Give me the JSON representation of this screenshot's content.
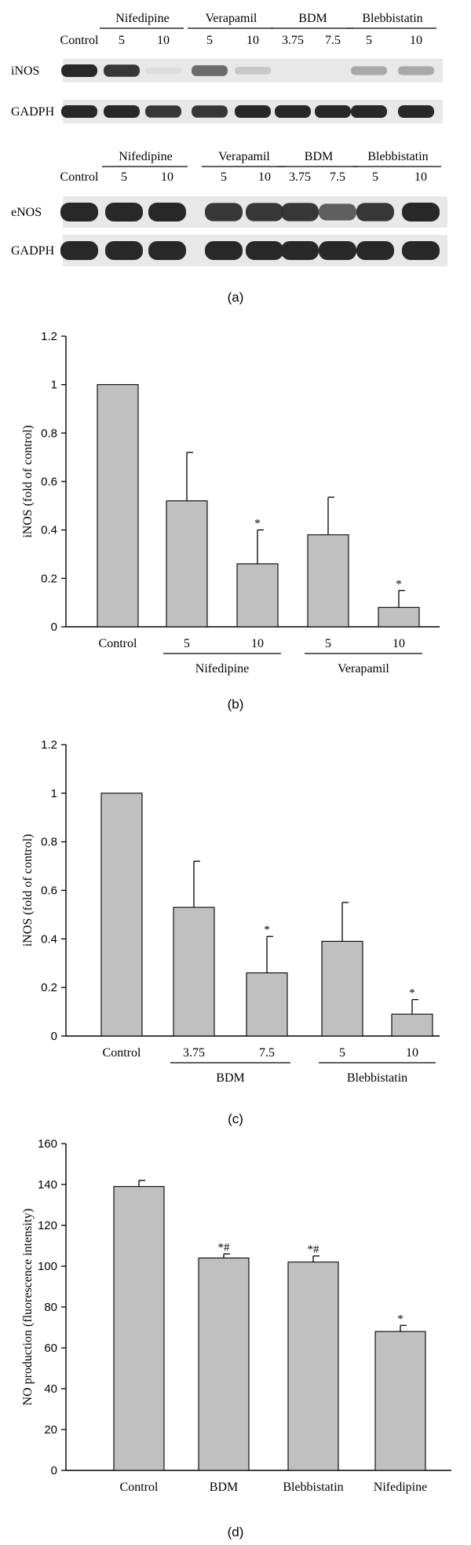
{
  "blots": {
    "top": {
      "control_label": "Control",
      "groups": [
        {
          "name": "Nifedipine",
          "doses": [
            "5",
            "10"
          ]
        },
        {
          "name": "Verapamil",
          "doses": [
            "5",
            "10"
          ]
        },
        {
          "name": "BDM",
          "doses": [
            "3.75",
            "7.5"
          ]
        },
        {
          "name": "Blebbistatin",
          "doses": [
            "5",
            "10"
          ]
        }
      ],
      "rows": [
        {
          "label": "iNOS",
          "intensities": [
            1,
            0.95,
            0.05,
            0.75,
            0.25,
            0,
            0,
            0.45,
            0.45
          ]
        },
        {
          "label": "GADPH",
          "intensities": [
            1,
            1,
            0.95,
            0.95,
            1,
            1,
            1,
            1,
            1
          ]
        }
      ]
    },
    "bottom": {
      "control_label": "Control",
      "groups": [
        {
          "name": "Nifedipine",
          "doses": [
            "5",
            "10"
          ]
        },
        {
          "name": "Verapamil",
          "doses": [
            "5",
            "10"
          ]
        },
        {
          "name": "BDM",
          "doses": [
            "3.75",
            "7.5"
          ]
        },
        {
          "name": "Blebbistatin",
          "doses": [
            "5",
            "10"
          ]
        }
      ],
      "rows": [
        {
          "label": "eNOS",
          "intensities": [
            1,
            1,
            1,
            0.95,
            0.95,
            0.95,
            0.8,
            0.95,
            1
          ]
        },
        {
          "label": "GADPH",
          "intensities": [
            1,
            1,
            1,
            1,
            1,
            1,
            1,
            1,
            1
          ]
        }
      ]
    }
  },
  "panel_labels": {
    "a": "(a)",
    "b": "(b)",
    "c": "(c)",
    "d": "(d)"
  },
  "chart_data": [
    {
      "type": "bar",
      "panel": "b",
      "ylabel": "iNOS (fold of control)",
      "ylim": [
        0,
        1.2
      ],
      "yticks": [
        "0",
        "0.2",
        "0.4",
        "0.6",
        "0.8",
        "1",
        "1.2"
      ],
      "categories": [
        "Control",
        "5",
        "10",
        "5",
        "10"
      ],
      "values": [
        1.0,
        0.52,
        0.26,
        0.38,
        0.08
      ],
      "errors": [
        0,
        0.2,
        0.14,
        0.155,
        0.07
      ],
      "annotations": [
        "",
        "",
        "*",
        "",
        "*"
      ],
      "groups": [
        {
          "label": "Nifedipine",
          "members": [
            1,
            2
          ]
        },
        {
          "label": "Verapamil",
          "members": [
            3,
            4
          ]
        }
      ],
      "bar_color": "#c0c0c0"
    },
    {
      "type": "bar",
      "panel": "c",
      "ylabel": "iNOS (fold of control)",
      "ylim": [
        0,
        1.2
      ],
      "yticks": [
        "0",
        "0.2",
        "0.4",
        "0.6",
        "0.8",
        "1",
        "1.2"
      ],
      "categories": [
        "Control",
        "3.75",
        "7.5",
        "5",
        "10"
      ],
      "values": [
        1.0,
        0.53,
        0.26,
        0.39,
        0.09
      ],
      "errors": [
        0,
        0.19,
        0.15,
        0.16,
        0.06
      ],
      "annotations": [
        "",
        "",
        "*",
        "",
        "*"
      ],
      "groups": [
        {
          "label": "BDM",
          "members": [
            1,
            2
          ]
        },
        {
          "label": "Blebbistatin",
          "members": [
            3,
            4
          ]
        }
      ],
      "bar_color": "#c0c0c0"
    },
    {
      "type": "bar",
      "panel": "d",
      "ylabel": "NO production (fluorescence intensity)",
      "ylim": [
        0,
        160
      ],
      "yticks": [
        "0",
        "20",
        "40",
        "60",
        "80",
        "100",
        "120",
        "140",
        "160"
      ],
      "categories": [
        "Control",
        "BDM",
        "Blebbistatin",
        "Nifedipine"
      ],
      "values": [
        139,
        104,
        102,
        68
      ],
      "errors": [
        3,
        2,
        3,
        3
      ],
      "annotations": [
        "",
        "*#",
        "*#",
        "*"
      ],
      "groups": [],
      "bar_color": "#c0c0c0"
    }
  ]
}
